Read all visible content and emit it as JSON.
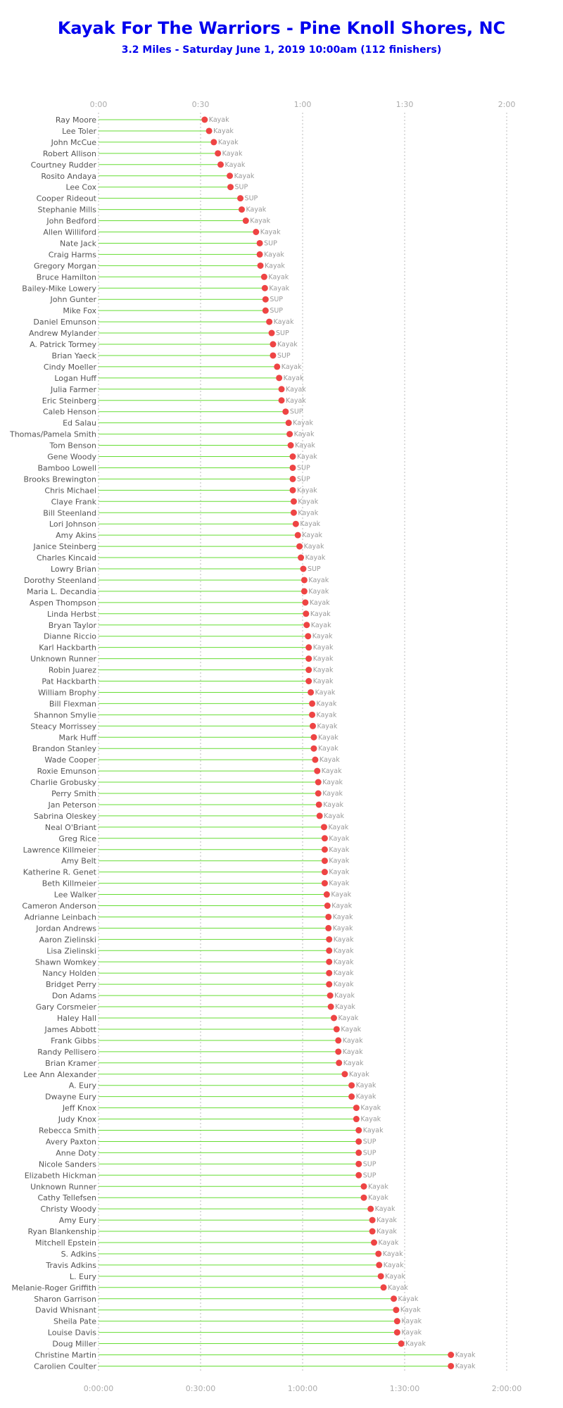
{
  "chart_data": {
    "type": "lollipop",
    "title": "Kayak For The Warriors - Pine Knoll Shores, NC",
    "subtitle": "3.2 Miles - Saturday June 1, 2019 10:00am (112 finishers)",
    "top_ticks": [
      "0:00",
      "0:30",
      "1:00",
      "1:30",
      "2:00"
    ],
    "bottom_ticks": [
      "0:00:00",
      "0:30:00",
      "1:00:00",
      "1:30:00",
      "2:00:00"
    ],
    "x_unit": "minutes",
    "xlim": [
      0,
      120
    ],
    "grid": "vertical-dotted",
    "series": [
      {
        "name": "Ray Moore",
        "time": 31.2,
        "class": "Kayak"
      },
      {
        "name": "Lee Toler",
        "time": 32.5,
        "class": "Kayak"
      },
      {
        "name": "John McCue",
        "time": 33.9,
        "class": "Kayak"
      },
      {
        "name": "Robert Allison",
        "time": 35.1,
        "class": "Kayak"
      },
      {
        "name": "Courtney Rudder",
        "time": 35.9,
        "class": "Kayak"
      },
      {
        "name": "Rosito Andaya",
        "time": 38.6,
        "class": "Kayak"
      },
      {
        "name": "Lee Cox",
        "time": 38.8,
        "class": "SUP"
      },
      {
        "name": "Cooper Rideout",
        "time": 41.7,
        "class": "SUP"
      },
      {
        "name": "Stephanie Mills",
        "time": 42.1,
        "class": "Kayak"
      },
      {
        "name": "John Bedford",
        "time": 43.3,
        "class": "Kayak"
      },
      {
        "name": "Allen Williford",
        "time": 46.3,
        "class": "Kayak"
      },
      {
        "name": "Nate Jack",
        "time": 47.4,
        "class": "SUP"
      },
      {
        "name": "Craig Harms",
        "time": 47.4,
        "class": "Kayak"
      },
      {
        "name": "Gregory Morgan",
        "time": 47.6,
        "class": "Kayak"
      },
      {
        "name": "Bruce Hamilton",
        "time": 48.7,
        "class": "Kayak"
      },
      {
        "name": "Bailey-Mike Lowery",
        "time": 48.9,
        "class": "Kayak"
      },
      {
        "name": "John Gunter",
        "time": 49.1,
        "class": "SUP"
      },
      {
        "name": "Mike Fox",
        "time": 49.1,
        "class": "SUP"
      },
      {
        "name": "Daniel Emunson",
        "time": 50.2,
        "class": "Kayak"
      },
      {
        "name": "Andrew Mylander",
        "time": 50.9,
        "class": "SUP"
      },
      {
        "name": "A. Patrick Tormey",
        "time": 51.3,
        "class": "Kayak"
      },
      {
        "name": "Brian Yaeck",
        "time": 51.3,
        "class": "SUP"
      },
      {
        "name": "Cindy Moeller",
        "time": 52.5,
        "class": "Kayak"
      },
      {
        "name": "Logan Huff",
        "time": 53.1,
        "class": "Kayak"
      },
      {
        "name": "Julia Farmer",
        "time": 53.8,
        "class": "Kayak"
      },
      {
        "name": "Eric Steinberg",
        "time": 53.8,
        "class": "Kayak"
      },
      {
        "name": "Caleb Henson",
        "time": 55.0,
        "class": "SUP"
      },
      {
        "name": "Ed Salau",
        "time": 55.9,
        "class": "Kayak"
      },
      {
        "name": "Thomas/Pamela Smith",
        "time": 56.2,
        "class": "Kayak"
      },
      {
        "name": "Tom Benson",
        "time": 56.5,
        "class": "Kayak"
      },
      {
        "name": "Gene Woody",
        "time": 57.1,
        "class": "Kayak"
      },
      {
        "name": "Bamboo Lowell",
        "time": 57.1,
        "class": "SUP"
      },
      {
        "name": "Brooks Brewington",
        "time": 57.1,
        "class": "SUP"
      },
      {
        "name": "Chris Michael",
        "time": 57.1,
        "class": "Kayak"
      },
      {
        "name": "Claye Frank",
        "time": 57.4,
        "class": "Kayak"
      },
      {
        "name": "Bill Steenland",
        "time": 57.4,
        "class": "Kayak"
      },
      {
        "name": "Lori Johnson",
        "time": 58.0,
        "class": "Kayak"
      },
      {
        "name": "Amy Akins",
        "time": 58.6,
        "class": "Kayak"
      },
      {
        "name": "Janice Steinberg",
        "time": 59.1,
        "class": "Kayak"
      },
      {
        "name": "Charles Kincaid",
        "time": 59.5,
        "class": "Kayak"
      },
      {
        "name": "Lowry Brian",
        "time": 60.2,
        "class": "SUP"
      },
      {
        "name": "Dorothy Steenland",
        "time": 60.5,
        "class": "Kayak"
      },
      {
        "name": "Maria L. Decandia",
        "time": 60.5,
        "class": "Kayak"
      },
      {
        "name": "Aspen Thompson",
        "time": 60.8,
        "class": "Kayak"
      },
      {
        "name": "Linda Herbst",
        "time": 61.0,
        "class": "Kayak"
      },
      {
        "name": "Bryan Taylor",
        "time": 61.2,
        "class": "Kayak"
      },
      {
        "name": "Dianne Riccio",
        "time": 61.6,
        "class": "Kayak"
      },
      {
        "name": "Karl Hackbarth",
        "time": 61.8,
        "class": "Kayak"
      },
      {
        "name": "Unknown Runner",
        "time": 61.8,
        "class": "Kayak"
      },
      {
        "name": "Robin Juarez",
        "time": 61.8,
        "class": "Kayak"
      },
      {
        "name": "Pat Hackbarth",
        "time": 61.8,
        "class": "Kayak"
      },
      {
        "name": "William Brophy",
        "time": 62.4,
        "class": "Kayak"
      },
      {
        "name": "Bill Flexman",
        "time": 62.8,
        "class": "Kayak"
      },
      {
        "name": "Shannon Smylie",
        "time": 62.8,
        "class": "Kayak"
      },
      {
        "name": "Steacy Morrissey",
        "time": 63.0,
        "class": "Kayak"
      },
      {
        "name": "Mark Huff",
        "time": 63.3,
        "class": "Kayak"
      },
      {
        "name": "Brandon Stanley",
        "time": 63.3,
        "class": "Kayak"
      },
      {
        "name": "Wade Cooper",
        "time": 63.7,
        "class": "Kayak"
      },
      {
        "name": "Roxie Emunson",
        "time": 64.3,
        "class": "Kayak"
      },
      {
        "name": "Charlie Grobusky",
        "time": 64.6,
        "class": "Kayak"
      },
      {
        "name": "Perry Smith",
        "time": 64.6,
        "class": "Kayak"
      },
      {
        "name": "Jan Peterson",
        "time": 64.8,
        "class": "Kayak"
      },
      {
        "name": "Sabrina Oleskey",
        "time": 65.0,
        "class": "Kayak"
      },
      {
        "name": "Neal O'Briant",
        "time": 66.3,
        "class": "Kayak"
      },
      {
        "name": "Greg Rice",
        "time": 66.5,
        "class": "Kayak"
      },
      {
        "name": "Lawrence Killmeier",
        "time": 66.5,
        "class": "Kayak"
      },
      {
        "name": "Amy Belt",
        "time": 66.5,
        "class": "Kayak"
      },
      {
        "name": "Katherine R. Genet",
        "time": 66.5,
        "class": "Kayak"
      },
      {
        "name": "Beth Killmeier",
        "time": 66.5,
        "class": "Kayak"
      },
      {
        "name": "Lee Walker",
        "time": 67.1,
        "class": "Kayak"
      },
      {
        "name": "Cameron Anderson",
        "time": 67.3,
        "class": "Kayak"
      },
      {
        "name": "Adrianne Leinbach",
        "time": 67.6,
        "class": "Kayak"
      },
      {
        "name": "Jordan Andrews",
        "time": 67.6,
        "class": "Kayak"
      },
      {
        "name": "Aaron Zielinski",
        "time": 67.8,
        "class": "Kayak"
      },
      {
        "name": "Lisa Zielinski",
        "time": 67.8,
        "class": "Kayak"
      },
      {
        "name": "Shawn Womkey",
        "time": 67.8,
        "class": "Kayak"
      },
      {
        "name": "Nancy Holden",
        "time": 67.8,
        "class": "Kayak"
      },
      {
        "name": "Bridget Perry",
        "time": 67.8,
        "class": "Kayak"
      },
      {
        "name": "Don Adams",
        "time": 68.1,
        "class": "Kayak"
      },
      {
        "name": "Gary Corsmeier",
        "time": 68.3,
        "class": "Kayak"
      },
      {
        "name": "Haley Hall",
        "time": 69.2,
        "class": "Kayak"
      },
      {
        "name": "James Abbott",
        "time": 70.0,
        "class": "Kayak"
      },
      {
        "name": "Frank Gibbs",
        "time": 70.5,
        "class": "Kayak"
      },
      {
        "name": "Randy Pellisero",
        "time": 70.5,
        "class": "Kayak"
      },
      {
        "name": "Brian Kramer",
        "time": 70.7,
        "class": "Kayak"
      },
      {
        "name": "Lee Ann Alexander",
        "time": 72.4,
        "class": "Kayak"
      },
      {
        "name": "A. Eury",
        "time": 74.4,
        "class": "Kayak"
      },
      {
        "name": "Dwayne Eury",
        "time": 74.4,
        "class": "Kayak"
      },
      {
        "name": "Jeff Knox",
        "time": 75.8,
        "class": "Kayak"
      },
      {
        "name": "Judy Knox",
        "time": 75.8,
        "class": "Kayak"
      },
      {
        "name": "Rebecca Smith",
        "time": 76.5,
        "class": "Kayak"
      },
      {
        "name": "Avery Paxton",
        "time": 76.5,
        "class": "SUP"
      },
      {
        "name": "Anne Doty",
        "time": 76.5,
        "class": "SUP"
      },
      {
        "name": "Nicole Sanders",
        "time": 76.5,
        "class": "SUP"
      },
      {
        "name": "Elizabeth Hickman",
        "time": 76.5,
        "class": "SUP"
      },
      {
        "name": "Unknown Runner",
        "time": 78.0,
        "class": "Kayak"
      },
      {
        "name": "Cathy Tellefsen",
        "time": 78.0,
        "class": "Kayak"
      },
      {
        "name": "Christy Woody",
        "time": 80.0,
        "class": "Kayak"
      },
      {
        "name": "Amy Eury",
        "time": 80.5,
        "class": "Kayak"
      },
      {
        "name": "Ryan Blankenship",
        "time": 80.5,
        "class": "Kayak"
      },
      {
        "name": "Mitchell Epstein",
        "time": 81.0,
        "class": "Kayak"
      },
      {
        "name": "S. Adkins",
        "time": 82.3,
        "class": "Kayak"
      },
      {
        "name": "Travis Adkins",
        "time": 82.5,
        "class": "Kayak"
      },
      {
        "name": "L. Eury",
        "time": 83.0,
        "class": "Kayak"
      },
      {
        "name": "Melanie-Roger Griffith",
        "time": 83.8,
        "class": "Kayak"
      },
      {
        "name": "Sharon Garrison",
        "time": 86.8,
        "class": "Kayak"
      },
      {
        "name": "David Whisnant",
        "time": 87.5,
        "class": "Kayak"
      },
      {
        "name": "Sheila Pate",
        "time": 87.8,
        "class": "Kayak"
      },
      {
        "name": "Louise Davis",
        "time": 87.8,
        "class": "Kayak"
      },
      {
        "name": "Doug Miller",
        "time": 89.0,
        "class": "Kayak"
      },
      {
        "name": "Christine Martin",
        "time": 103.6,
        "class": "Kayak"
      },
      {
        "name": "Carolien Coulter",
        "time": 103.6,
        "class": "Kayak"
      }
    ]
  }
}
